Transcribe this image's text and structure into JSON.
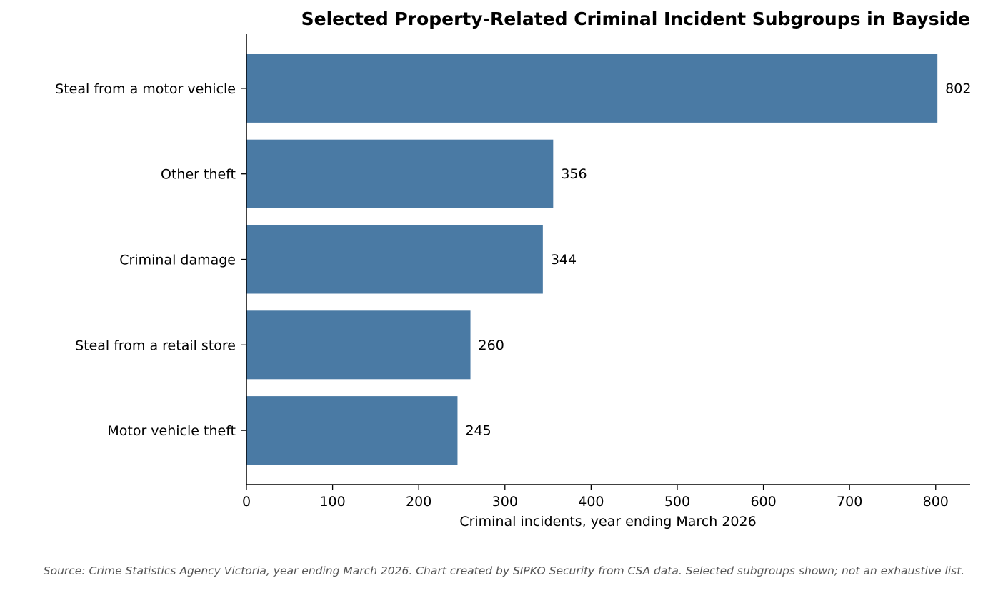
{
  "chart_data": {
    "type": "bar",
    "orientation": "horizontal",
    "title": "Selected Property-Related Criminal Incident Subgroups in Bayside",
    "xlabel": "Criminal incidents, year ending March 2026",
    "ylabel": "",
    "categories": [
      "Steal from a motor vehicle",
      "Other theft",
      "Criminal damage",
      "Steal from a retail store",
      "Motor vehicle theft"
    ],
    "values": [
      802,
      356,
      344,
      260,
      245
    ],
    "data_labels": [
      "802",
      "356",
      "344",
      "260",
      "245"
    ],
    "xlim": [
      0,
      840
    ],
    "xticks": [
      0,
      100,
      200,
      300,
      400,
      500,
      600,
      700,
      800
    ],
    "xtick_labels": [
      "0",
      "100",
      "200",
      "300",
      "400",
      "500",
      "600",
      "700",
      "800"
    ],
    "bar_color": "#4a7aa4",
    "grid": false,
    "legend": "none"
  },
  "footer": {
    "source": "Source: Crime Statistics Agency Victoria, year ending March 2026. Chart created by SIPKO Security from CSA data. Selected subgroups shown; not an exhaustive list."
  }
}
